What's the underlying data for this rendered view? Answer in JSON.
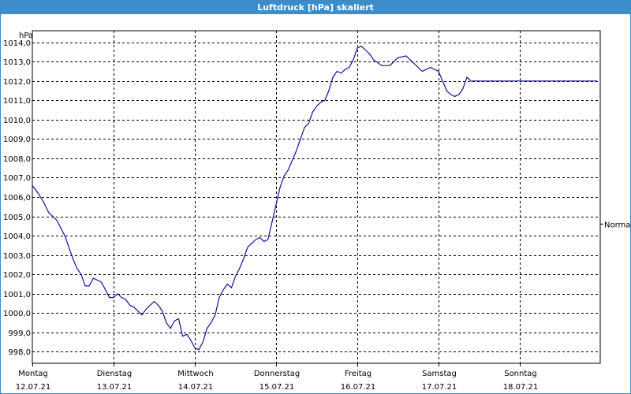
{
  "window": {
    "title": "Luftdruck [hPa] skaliert"
  },
  "chart_data": {
    "type": "line",
    "title": "Luftdruck [hPa] skaliert",
    "ylabel": "hPa",
    "ylim": [
      997.4,
      1014.6
    ],
    "yticks": [
      "998,0",
      "999,0",
      "1000,0",
      "1001,0",
      "1002,0",
      "1003,0",
      "1004,0",
      "1005,0",
      "1006,0",
      "1007,0",
      "1008,0",
      "1009,0",
      "1010,0",
      "1011,0",
      "1012,0",
      "1013,0",
      "1014,0"
    ],
    "ytick_values": [
      998,
      999,
      1000,
      1001,
      1002,
      1003,
      1004,
      1005,
      1006,
      1007,
      1008,
      1009,
      1010,
      1011,
      1012,
      1013,
      1014
    ],
    "xlim": [
      0,
      7
    ],
    "xticks": [
      {
        "day": "Montag",
        "date": "12.07.21"
      },
      {
        "day": "Dienstag",
        "date": "13.07.21"
      },
      {
        "day": "Mittwoch",
        "date": "14.07.21"
      },
      {
        "day": "Donnerstag",
        "date": "15.07.21"
      },
      {
        "day": "Freitag",
        "date": "16.07.21"
      },
      {
        "day": "Samstag",
        "date": "17.07.21"
      },
      {
        "day": "Sonntag",
        "date": "18.07.21"
      }
    ],
    "grid": true,
    "annotations": [
      {
        "text": "Normal",
        "y": 1004.6
      }
    ],
    "color": "#1010a0",
    "series": [
      {
        "x": [
          0,
          0.07,
          0.13,
          0.2,
          0.25,
          0.3,
          0.35,
          0.4,
          0.45,
          0.5,
          0.55,
          0.6,
          0.65,
          0.7,
          0.75,
          0.8,
          0.85,
          0.9,
          0.95,
          1.0,
          1.05,
          1.1,
          1.15,
          1.2,
          1.25,
          1.3,
          1.35,
          1.4,
          1.45,
          1.5,
          1.55,
          1.6,
          1.65,
          1.7,
          1.75,
          1.8,
          1.85,
          1.9,
          1.95,
          2.0,
          2.05,
          2.1,
          2.15,
          2.2,
          2.25,
          2.3,
          2.35,
          2.4,
          2.45,
          2.5,
          2.55,
          2.6,
          2.65,
          2.7,
          2.75,
          2.8,
          2.85,
          2.9,
          2.95,
          3.0,
          3.05,
          3.1,
          3.15,
          3.2,
          3.25,
          3.3,
          3.35,
          3.4,
          3.45,
          3.5,
          3.55,
          3.6,
          3.65,
          3.7,
          3.75,
          3.8,
          3.85,
          3.9,
          3.95,
          4.0,
          4.05,
          4.1,
          4.15,
          4.2,
          4.3,
          4.4,
          4.5,
          4.6,
          4.7,
          4.8,
          4.9,
          5.0,
          5.05,
          5.1,
          5.15,
          5.2,
          5.25,
          5.3,
          5.35,
          5.4,
          5.45,
          5.5,
          5.6,
          5.7,
          5.8,
          5.9,
          6.0,
          6.05,
          6.1,
          6.15,
          6.2,
          6.3,
          6.4,
          6.5,
          6.55,
          6.6,
          6.65,
          6.7,
          6.8,
          6.9,
          6.95
        ],
        "y": [
          1006.6,
          1006.2,
          1005.8,
          1005.2,
          1005.0,
          1004.8,
          1004.4,
          1004.0,
          1003.4,
          1002.8,
          1002.3,
          1002.0,
          1001.4,
          1001.4,
          1001.8,
          1001.7,
          1001.6,
          1001.2,
          1000.8,
          1000.8,
          1001.0,
          1000.8,
          1000.7,
          1000.4,
          1000.3,
          1000.1,
          999.9,
          1000.2,
          1000.4,
          1000.6,
          1000.4,
          1000.1,
          999.5,
          999.2,
          999.6,
          999.7,
          998.8,
          998.9,
          998.6,
          998.2,
          998.1,
          998.5,
          999.2,
          999.5,
          999.9,
          1000.8,
          1001.2,
          1001.5,
          1001.3,
          1001.9,
          1002.3,
          1002.8,
          1003.4,
          1003.6,
          1003.8,
          1003.9,
          1003.7,
          1003.8,
          1004.7,
          1005.6,
          1006.5,
          1007.1,
          1007.4,
          1007.9,
          1008.4,
          1009.0,
          1009.6,
          1009.8,
          1010.4,
          1010.7,
          1010.9,
          1011.0,
          1011.5,
          1012.2,
          1012.5,
          1012.4,
          1012.6,
          1012.7,
          1013.1,
          1013.7,
          1013.8,
          1013.6,
          1013.4,
          1013.1,
          1012.8,
          1012.8,
          1013.2,
          1013.3,
          1012.9,
          1012.5,
          1012.7,
          1012.5,
          1012.0,
          1011.5,
          1011.3,
          1011.2,
          1011.3,
          1011.6,
          1012.2,
          1012.0,
          1012.0,
          1012.0,
          1012.0,
          1012.0,
          1012.0,
          1012.0,
          1012.0,
          1012.0,
          1012.0,
          1012.0,
          1012.0,
          1012.0,
          1012.0,
          1012.0,
          1012.0,
          1012.0,
          1012.0,
          1012.0,
          1012.0,
          1012.0,
          1012.0
        ]
      }
    ]
  }
}
